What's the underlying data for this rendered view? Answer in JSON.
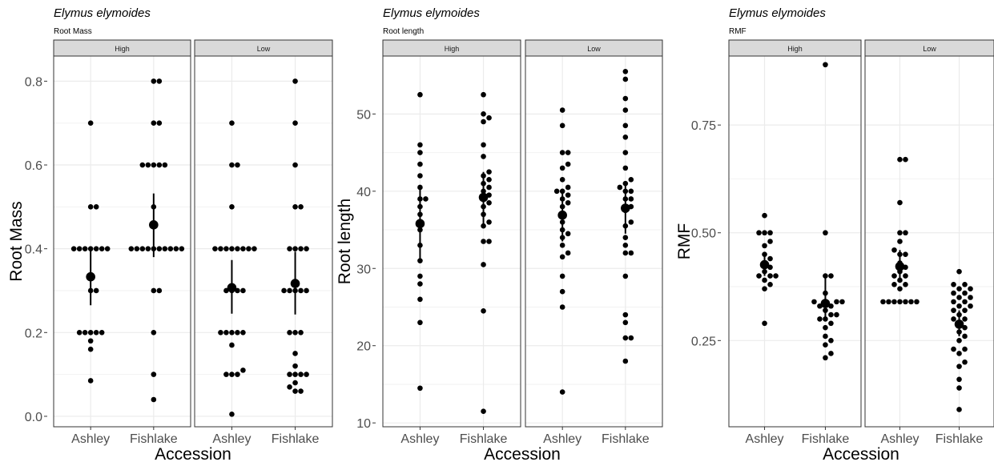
{
  "chart_data": [
    {
      "type": "dotplot",
      "title": "Elymus elymoides",
      "subtitle": "Root Mass",
      "xlabel": "Accession",
      "ylabel": "Root Mass",
      "ylim": [
        -0.025,
        0.86
      ],
      "yticks": [
        0.0,
        0.2,
        0.4,
        0.6,
        0.8
      ],
      "ytick_labels": [
        "0.0",
        "0.2",
        "0.4",
        "0.6",
        "0.8"
      ],
      "grid": true,
      "facets": [
        {
          "label": "High",
          "groups": [
            {
              "name": "Ashley",
              "mean": 0.333,
              "ci": [
                0.265,
                0.405
              ],
              "points": [
                0.7,
                0.5,
                0.5,
                0.4,
                0.4,
                0.4,
                0.4,
                0.4,
                0.4,
                0.4,
                0.3,
                0.3,
                0.2,
                0.2,
                0.2,
                0.2,
                0.2,
                0.16,
                0.18,
                0.085
              ]
            },
            {
              "name": "Fishlake",
              "mean": 0.457,
              "ci": [
                0.38,
                0.532
              ],
              "points": [
                0.8,
                0.8,
                0.7,
                0.7,
                0.6,
                0.6,
                0.6,
                0.6,
                0.6,
                0.5,
                0.4,
                0.4,
                0.4,
                0.4,
                0.4,
                0.4,
                0.4,
                0.4,
                0.4,
                0.4,
                0.3,
                0.3,
                0.2,
                0.1,
                0.04
              ]
            }
          ]
        },
        {
          "label": "Low",
          "groups": [
            {
              "name": "Ashley",
              "mean": 0.307,
              "ci": [
                0.245,
                0.373
              ],
              "points": [
                0.7,
                0.6,
                0.6,
                0.5,
                0.4,
                0.4,
                0.4,
                0.4,
                0.4,
                0.4,
                0.4,
                0.4,
                0.3,
                0.3,
                0.3,
                0.3,
                0.2,
                0.2,
                0.2,
                0.2,
                0.2,
                0.17,
                0.11,
                0.1,
                0.1,
                0.1,
                0.005
              ]
            },
            {
              "name": "Fishlake",
              "mean": 0.317,
              "ci": [
                0.243,
                0.393
              ],
              "points": [
                0.8,
                0.7,
                0.6,
                0.5,
                0.5,
                0.4,
                0.4,
                0.4,
                0.4,
                0.3,
                0.3,
                0.3,
                0.3,
                0.3,
                0.2,
                0.2,
                0.2,
                0.15,
                0.12,
                0.1,
                0.1,
                0.1,
                0.1,
                0.08,
                0.07,
                0.06,
                0.06
              ]
            }
          ]
        }
      ]
    },
    {
      "type": "dotplot",
      "title": "Elymus elymoides",
      "subtitle": "Root length",
      "xlabel": "Accession",
      "ylabel": "Root length",
      "ylim": [
        9.5,
        57.5
      ],
      "yticks": [
        10,
        20,
        30,
        40,
        50
      ],
      "ytick_labels": [
        "10",
        "20",
        "30",
        "40",
        "50"
      ],
      "grid": true,
      "facets": [
        {
          "label": "High",
          "groups": [
            {
              "name": "Ashley",
              "mean": 35.8,
              "ci": [
                31.2,
                40.3
              ],
              "points": [
                52.5,
                46.0,
                45.0,
                43.5,
                42.0,
                40.5,
                39.0,
                39.0,
                38.0,
                37.0,
                35.0,
                33.0,
                31.0,
                29.0,
                28.0,
                26.0,
                23.0,
                14.5
              ]
            },
            {
              "name": "Fishlake",
              "mean": 39.2,
              "ci": [
                35.8,
                42.5
              ],
              "points": [
                52.5,
                50.0,
                49.5,
                49.0,
                46.0,
                44.5,
                42.5,
                42.0,
                41.5,
                41.0,
                40.5,
                40.0,
                39.5,
                39.0,
                38.5,
                38.0,
                37.0,
                36.0,
                35.5,
                33.5,
                33.5,
                30.5,
                24.5,
                11.5
              ]
            }
          ]
        },
        {
          "label": "Low",
          "groups": [
            {
              "name": "Ashley",
              "mean": 36.9,
              "ci": [
                33.5,
                40.3
              ],
              "points": [
                50.5,
                48.5,
                45.0,
                45.0,
                43.5,
                43.0,
                41.5,
                40.5,
                40.0,
                40.0,
                39.5,
                39.0,
                38.5,
                38.0,
                37.0,
                36.0,
                35.0,
                34.5,
                34.0,
                33.0,
                32.0,
                31.5,
                29.0,
                27.0,
                25.0,
                14.0
              ]
            },
            {
              "name": "Fishlake",
              "mean": 37.8,
              "ci": [
                34.5,
                41.0
              ],
              "points": [
                55.5,
                54.5,
                52.0,
                50.5,
                48.5,
                47.0,
                45.0,
                43.0,
                41.5,
                41.0,
                40.5,
                40.0,
                40.0,
                39.0,
                39.0,
                38.0,
                37.5,
                36.0,
                35.5,
                34.0,
                33.0,
                32.0,
                32.0,
                29.0,
                24.0,
                23.0,
                21.0,
                21.0,
                18.0
              ]
            }
          ]
        }
      ]
    },
    {
      "type": "dotplot",
      "title": "Elymus elymoides",
      "subtitle": "RMF",
      "xlabel": "Accession",
      "ylabel": "RMF",
      "ylim": [
        0.05,
        0.91
      ],
      "yticks": [
        0.25,
        0.5,
        0.75
      ],
      "ytick_labels": [
        "0.25",
        "0.50",
        "0.75"
      ],
      "grid": true,
      "facets": [
        {
          "label": "High",
          "groups": [
            {
              "name": "Ashley",
              "mean": 0.426,
              "ci": [
                0.4,
                0.455
              ],
              "points": [
                0.54,
                0.5,
                0.5,
                0.5,
                0.48,
                0.47,
                0.45,
                0.44,
                0.43,
                0.42,
                0.41,
                0.4,
                0.4,
                0.4,
                0.39,
                0.38,
                0.37,
                0.29
              ]
            },
            {
              "name": "Fishlake",
              "mean": 0.336,
              "ci": [
                0.295,
                0.395
              ],
              "points": [
                0.89,
                0.5,
                0.4,
                0.4,
                0.36,
                0.34,
                0.34,
                0.34,
                0.34,
                0.33,
                0.33,
                0.32,
                0.31,
                0.31,
                0.3,
                0.3,
                0.29,
                0.28,
                0.26,
                0.25,
                0.24,
                0.22,
                0.21
              ]
            }
          ]
        },
        {
          "label": "Low",
          "groups": [
            {
              "name": "Ashley",
              "mean": 0.422,
              "ci": [
                0.39,
                0.46
              ],
              "points": [
                0.67,
                0.67,
                0.57,
                0.5,
                0.5,
                0.48,
                0.46,
                0.45,
                0.45,
                0.43,
                0.42,
                0.41,
                0.4,
                0.4,
                0.39,
                0.38,
                0.38,
                0.37,
                0.34,
                0.34,
                0.34,
                0.34,
                0.34,
                0.34,
                0.34
              ]
            },
            {
              "name": "Fishlake",
              "mean": 0.288,
              "ci": [
                0.26,
                0.32
              ],
              "points": [
                0.41,
                0.38,
                0.38,
                0.37,
                0.37,
                0.36,
                0.36,
                0.35,
                0.35,
                0.34,
                0.34,
                0.33,
                0.33,
                0.32,
                0.32,
                0.31,
                0.3,
                0.3,
                0.29,
                0.28,
                0.27,
                0.26,
                0.25,
                0.23,
                0.23,
                0.22,
                0.2,
                0.19,
                0.16,
                0.14,
                0.09
              ]
            }
          ]
        }
      ]
    }
  ]
}
